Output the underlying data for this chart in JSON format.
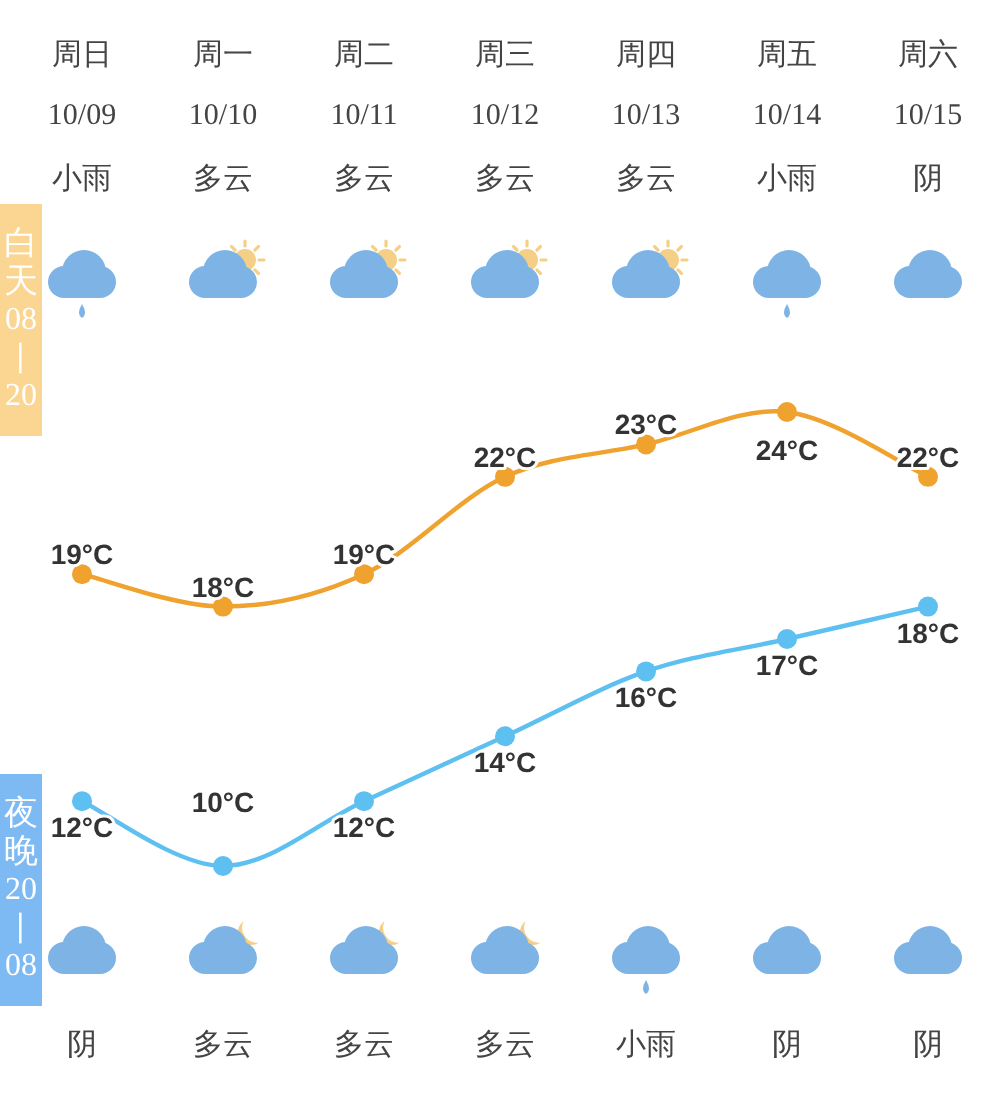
{
  "chart_data": {
    "type": "line",
    "categories": [
      "周日",
      "周一",
      "周二",
      "周三",
      "周四",
      "周五",
      "周六"
    ],
    "series": [
      {
        "color": "#f0a22e",
        "values": [
          19,
          18,
          19,
          22,
          23,
          24,
          22
        ],
        "value_labels": [
          "19°C",
          "18°C",
          "19°C",
          "22°C",
          "23°C",
          "24°C",
          "22°C"
        ]
      },
      {
        "color": "#5ec0f0",
        "values": [
          12,
          10,
          12,
          14,
          16,
          17,
          18
        ],
        "value_labels": [
          "12°C",
          "10°C",
          "12°C",
          "14°C",
          "16°C",
          "17°C",
          "18°C"
        ]
      }
    ],
    "marker": "circle",
    "line_style": "solid",
    "tick_labels": "x",
    "annotations": [
      "10/09",
      "10/10",
      "10/11",
      "10/12",
      "10/13",
      "10/14",
      "10/15",
      "小雨",
      "多云",
      "多云",
      "多云",
      "多云",
      "小雨",
      "阴",
      "阴",
      "多云",
      "多云",
      "多云",
      "小雨",
      "阴",
      "阴",
      "白天08—20",
      "夜晚20—08"
    ]
  }
}
